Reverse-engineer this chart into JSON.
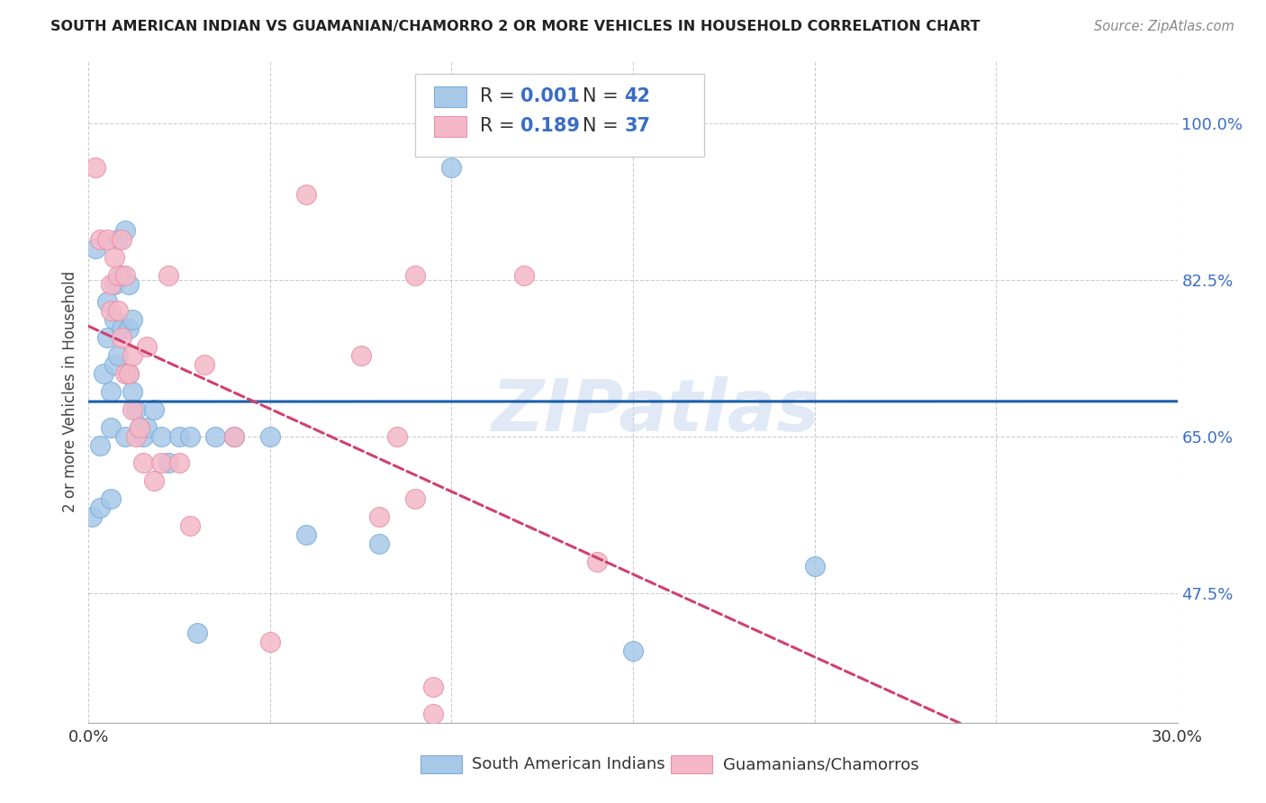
{
  "title": "SOUTH AMERICAN INDIAN VS GUAMANIAN/CHAMORRO 2 OR MORE VEHICLES IN HOUSEHOLD CORRELATION CHART",
  "source": "Source: ZipAtlas.com",
  "ylabel": "2 or more Vehicles in Household",
  "xlim": [
    0.0,
    0.3
  ],
  "ylim": [
    0.33,
    1.07
  ],
  "xticks": [
    0.0,
    0.05,
    0.1,
    0.15,
    0.2,
    0.25,
    0.3
  ],
  "xticklabels": [
    "0.0%",
    "",
    "",
    "",
    "",
    "",
    "30.0%"
  ],
  "yticks": [
    0.475,
    0.65,
    0.825,
    1.0
  ],
  "yticklabels": [
    "47.5%",
    "65.0%",
    "82.5%",
    "100.0%"
  ],
  "legend_labels": [
    "South American Indians",
    "Guamanians/Chamorros"
  ],
  "blue_color": "#a8c8e8",
  "blue_edge": "#7aaedc",
  "pink_color": "#f4b8c8",
  "pink_edge": "#e890a8",
  "line_blue": "#1a5fa8",
  "line_pink": "#d04070",
  "watermark": "ZIPatlas",
  "blue_x": [
    0.001,
    0.002,
    0.003,
    0.003,
    0.004,
    0.005,
    0.005,
    0.006,
    0.006,
    0.006,
    0.007,
    0.007,
    0.007,
    0.008,
    0.008,
    0.009,
    0.009,
    0.01,
    0.01,
    0.011,
    0.011,
    0.011,
    0.012,
    0.012,
    0.013,
    0.014,
    0.015,
    0.016,
    0.018,
    0.02,
    0.022,
    0.025,
    0.028,
    0.03,
    0.035,
    0.04,
    0.05,
    0.06,
    0.08,
    0.1,
    0.15,
    0.2
  ],
  "blue_y": [
    0.56,
    0.86,
    0.64,
    0.57,
    0.72,
    0.8,
    0.76,
    0.7,
    0.66,
    0.58,
    0.82,
    0.78,
    0.73,
    0.87,
    0.74,
    0.83,
    0.77,
    0.88,
    0.65,
    0.82,
    0.77,
    0.72,
    0.78,
    0.7,
    0.68,
    0.66,
    0.65,
    0.66,
    0.68,
    0.65,
    0.62,
    0.65,
    0.65,
    0.43,
    0.65,
    0.65,
    0.65,
    0.54,
    0.53,
    0.95,
    0.41,
    0.505
  ],
  "pink_x": [
    0.002,
    0.003,
    0.005,
    0.006,
    0.006,
    0.007,
    0.008,
    0.008,
    0.009,
    0.009,
    0.01,
    0.01,
    0.011,
    0.012,
    0.012,
    0.013,
    0.014,
    0.015,
    0.016,
    0.018,
    0.02,
    0.022,
    0.025,
    0.028,
    0.032,
    0.04,
    0.05,
    0.06,
    0.075,
    0.08,
    0.085,
    0.09,
    0.12,
    0.095,
    0.14,
    0.09,
    0.095
  ],
  "pink_y": [
    0.95,
    0.87,
    0.87,
    0.82,
    0.79,
    0.85,
    0.83,
    0.79,
    0.87,
    0.76,
    0.83,
    0.72,
    0.72,
    0.74,
    0.68,
    0.65,
    0.66,
    0.62,
    0.75,
    0.6,
    0.62,
    0.83,
    0.62,
    0.55,
    0.73,
    0.65,
    0.42,
    0.92,
    0.74,
    0.56,
    0.65,
    0.83,
    0.83,
    0.34,
    0.51,
    0.58,
    0.37
  ]
}
